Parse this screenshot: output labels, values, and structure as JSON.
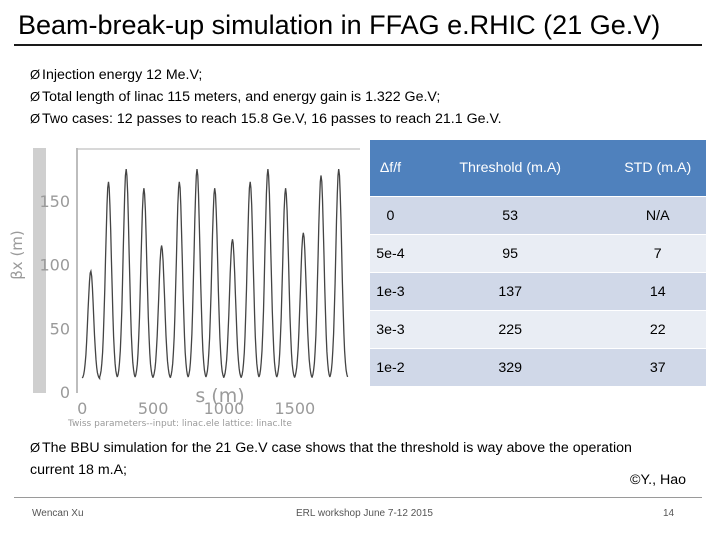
{
  "slide": {
    "title": "Beam-break-up simulation in FFAG e.RHIC (21 Ge.V)",
    "bullets": [
      "Injection energy 12 Me.V;",
      "Total length of linac 115 meters, and energy gain is 1.322 Ge.V;",
      "Two cases: 12 passes to reach 15.8 Ge.V, 16 passes to reach 21.1 Ge.V."
    ],
    "conclusion": "The BBU simulation for the 21 Ge.V case shows that the threshold is way above the operation current 18 m.A;",
    "copyright": "©Y., Hao",
    "footer": {
      "author": "Wencan Xu",
      "event": "ERL workshop June 7-12 2015",
      "page": "14"
    },
    "bullet_marker": "Ø"
  },
  "table": {
    "headers": [
      "Δf/f",
      "Threshold (m.A)",
      "STD (m.A)"
    ],
    "rows": [
      [
        "0",
        "53",
        "N/A"
      ],
      [
        "5e-4",
        "95",
        "7"
      ],
      [
        "1e-3",
        "137",
        "14"
      ],
      [
        "3e-3",
        "225",
        "22"
      ],
      [
        "1e-2",
        "329",
        "37"
      ]
    ],
    "header_color": "#4f81bd",
    "row_colors": [
      "#d0d8e8",
      "#e9edf4"
    ]
  },
  "chart_data": {
    "type": "line",
    "xlabel": "s (m)",
    "ylabel": "βx (m)",
    "xlim": [
      -30,
      1960
    ],
    "ylim": [
      0,
      190
    ],
    "x_ticks": [
      "0",
      "500",
      "1000",
      "1500"
    ],
    "y_ticks": [
      "0",
      "50",
      "100",
      "150"
    ],
    "caption": "Twiss parameters--input: linac.ele lattice: linac.lte",
    "series": [
      {
        "peaks_x": [
          60,
          185,
          310,
          435,
          560,
          685,
          810,
          935,
          1060,
          1185,
          1310,
          1435,
          1560,
          1685,
          1810
        ],
        "peaks_y": [
          95,
          165,
          175,
          160,
          115,
          165,
          175,
          160,
          120,
          165,
          175,
          160,
          125,
          170,
          175
        ],
        "minimum_y": 10,
        "color": "#444444"
      }
    ],
    "grid": false
  }
}
